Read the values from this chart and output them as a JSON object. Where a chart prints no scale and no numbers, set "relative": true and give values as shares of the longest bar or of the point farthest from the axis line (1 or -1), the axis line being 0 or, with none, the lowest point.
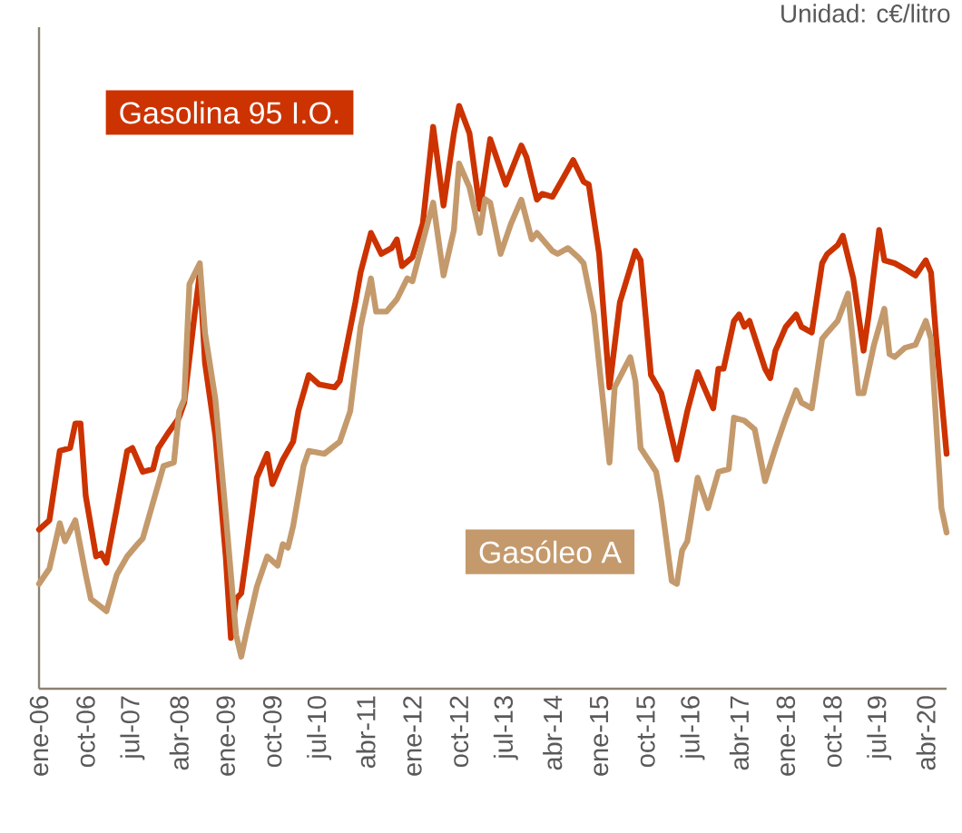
{
  "chart_data": {
    "type": "line",
    "relative": true,
    "annotations": [
      "Unidad: c€/litro"
    ],
    "xlim": [
      "2006-01",
      "2020-08"
    ],
    "xticks": [
      {
        "value": "2006-01",
        "label": "ene-06"
      },
      {
        "value": "2006-10",
        "label": "oct-06"
      },
      {
        "value": "2007-07",
        "label": "jul-07"
      },
      {
        "value": "2008-04",
        "label": "abr-08"
      },
      {
        "value": "2009-01",
        "label": "ene-09"
      },
      {
        "value": "2009-10",
        "label": "oct-09"
      },
      {
        "value": "2010-07",
        "label": "jul-10"
      },
      {
        "value": "2011-04",
        "label": "abr-11"
      },
      {
        "value": "2012-01",
        "label": "ene-12"
      },
      {
        "value": "2012-10",
        "label": "oct-12"
      },
      {
        "value": "2013-07",
        "label": "jul-13"
      },
      {
        "value": "2014-04",
        "label": "abr-14"
      },
      {
        "value": "2015-01",
        "label": "ene-15"
      },
      {
        "value": "2015-10",
        "label": "oct-15"
      },
      {
        "value": "2016-07",
        "label": "jul-16"
      },
      {
        "value": "2017-04",
        "label": "abr-17"
      },
      {
        "value": "2018-01",
        "label": "ene-18"
      },
      {
        "value": "2018-10",
        "label": "oct-18"
      },
      {
        "value": "2019-07",
        "label": "jul-19"
      },
      {
        "value": "2020-04",
        "label": "abr-20"
      }
    ],
    "series": [
      {
        "name": "Gasolina 95 I.O.",
        "color": "#cc3300",
        "x": [
          "2006-01",
          "2006-03",
          "2006-05",
          "2006-07",
          "2006-08",
          "2006-09",
          "2006-10",
          "2006-12",
          "2007-01",
          "2007-02",
          "2007-04",
          "2007-06",
          "2007-07",
          "2007-09",
          "2007-11",
          "2007-12",
          "2008-02",
          "2008-04",
          "2008-05",
          "2008-07",
          "2008-08",
          "2008-09",
          "2008-11",
          "2009-01",
          "2009-02",
          "2009-03",
          "2009-04",
          "2009-05",
          "2009-07",
          "2009-09",
          "2009-10",
          "2009-12",
          "2010-02",
          "2010-03",
          "2010-05",
          "2010-07",
          "2010-10",
          "2010-11",
          "2011-02",
          "2011-03",
          "2011-05",
          "2011-07",
          "2011-09",
          "2011-10",
          "2011-11",
          "2012-01",
          "2012-03",
          "2012-05",
          "2012-07",
          "2012-09",
          "2012-10",
          "2012-12",
          "2013-02",
          "2013-04",
          "2013-07",
          "2013-10",
          "2013-11",
          "2014-01",
          "2014-02",
          "2014-04",
          "2014-06",
          "2014-08",
          "2014-10",
          "2014-11",
          "2015-01",
          "2015-03",
          "2015-05",
          "2015-08",
          "2015-09",
          "2015-11",
          "2016-01",
          "2016-04",
          "2016-06",
          "2016-08",
          "2016-11",
          "2016-12",
          "2017-01",
          "2017-03",
          "2017-04",
          "2017-05",
          "2017-06",
          "2017-09",
          "2017-10",
          "2017-11",
          "2018-01",
          "2018-03",
          "2018-04",
          "2018-06",
          "2018-08",
          "2018-09",
          "2018-11",
          "2018-12",
          "2019-02",
          "2019-04",
          "2019-05",
          "2019-07",
          "2019-08",
          "2019-10",
          "2019-12",
          "2020-02",
          "2020-04",
          "2020-05",
          "2020-06",
          "2020-08"
        ],
        "values": [
          0.273,
          0.289,
          0.408,
          0.413,
          0.455,
          0.455,
          0.331,
          0.227,
          0.232,
          0.216,
          0.31,
          0.408,
          0.413,
          0.372,
          0.377,
          0.413,
          0.44,
          0.465,
          0.491,
          0.642,
          0.714,
          0.559,
          0.434,
          0.227,
          0.087,
          0.154,
          0.164,
          0.227,
          0.362,
          0.403,
          0.351,
          0.393,
          0.424,
          0.476,
          0.538,
          0.522,
          0.517,
          0.528,
          0.663,
          0.714,
          0.782,
          0.746,
          0.756,
          0.771,
          0.725,
          0.74,
          0.798,
          0.964,
          0.829,
          0.953,
          1.0,
          0.953,
          0.823,
          0.943,
          0.865,
          0.932,
          0.912,
          0.839,
          0.849,
          0.844,
          0.875,
          0.907,
          0.87,
          0.865,
          0.746,
          0.517,
          0.663,
          0.751,
          0.735,
          0.538,
          0.507,
          0.393,
          0.476,
          0.543,
          0.481,
          0.549,
          0.549,
          0.631,
          0.642,
          0.621,
          0.631,
          0.549,
          0.533,
          0.58,
          0.621,
          0.642,
          0.621,
          0.611,
          0.73,
          0.746,
          0.761,
          0.777,
          0.704,
          0.58,
          0.642,
          0.787,
          0.735,
          0.73,
          0.72,
          0.709,
          0.735,
          0.714,
          0.6,
          0.403
        ]
      },
      {
        "name": "Gasóleo A",
        "color": "#c49a6c",
        "x": [
          "2006-01",
          "2006-03",
          "2006-05",
          "2006-06",
          "2006-08",
          "2006-10",
          "2006-11",
          "2007-02",
          "2007-04",
          "2007-06",
          "2007-08",
          "2007-09",
          "2007-11",
          "2008-01",
          "2008-03",
          "2008-04",
          "2008-05",
          "2008-06",
          "2008-08",
          "2008-09",
          "2008-11",
          "2009-01",
          "2009-03",
          "2009-04",
          "2009-05",
          "2009-07",
          "2009-09",
          "2009-11",
          "2009-12",
          "2010-01",
          "2010-02",
          "2010-04",
          "2010-05",
          "2010-08",
          "2010-11",
          "2011-01",
          "2011-03",
          "2011-05",
          "2011-06",
          "2011-08",
          "2011-10",
          "2011-12",
          "2012-01",
          "2012-03",
          "2012-05",
          "2012-07",
          "2012-09",
          "2012-10",
          "2012-12",
          "2013-02",
          "2013-03",
          "2013-04",
          "2013-06",
          "2013-08",
          "2013-10",
          "2013-12",
          "2014-01",
          "2014-04",
          "2014-05",
          "2014-07",
          "2014-09",
          "2014-10",
          "2014-12",
          "2015-03",
          "2015-04",
          "2015-07",
          "2015-08",
          "2015-09",
          "2015-12",
          "2016-01",
          "2016-03",
          "2016-04",
          "2016-05",
          "2016-06",
          "2016-08",
          "2016-10",
          "2016-12",
          "2017-02",
          "2017-03",
          "2017-05",
          "2017-07",
          "2017-09",
          "2017-11",
          "2018-01",
          "2018-03",
          "2018-04",
          "2018-06",
          "2018-08",
          "2018-09",
          "2018-11",
          "2019-01",
          "2019-03",
          "2019-04",
          "2019-06",
          "2019-08",
          "2019-09",
          "2019-10",
          "2019-12",
          "2020-02",
          "2020-04",
          "2020-05",
          "2020-07",
          "2020-08"
        ],
        "values": [
          0.18,
          0.206,
          0.284,
          0.253,
          0.289,
          0.196,
          0.154,
          0.133,
          0.196,
          0.227,
          0.248,
          0.258,
          0.32,
          0.382,
          0.388,
          0.476,
          0.497,
          0.694,
          0.73,
          0.611,
          0.497,
          0.3,
          0.092,
          0.055,
          0.097,
          0.175,
          0.227,
          0.211,
          0.248,
          0.242,
          0.279,
          0.382,
          0.408,
          0.403,
          0.424,
          0.476,
          0.621,
          0.704,
          0.647,
          0.647,
          0.668,
          0.704,
          0.699,
          0.767,
          0.834,
          0.709,
          0.787,
          0.901,
          0.86,
          0.782,
          0.84,
          0.834,
          0.746,
          0.798,
          0.839,
          0.771,
          0.782,
          0.751,
          0.746,
          0.756,
          0.74,
          0.73,
          0.642,
          0.388,
          0.517,
          0.569,
          0.528,
          0.413,
          0.372,
          0.32,
          0.185,
          0.18,
          0.237,
          0.253,
          0.362,
          0.31,
          0.372,
          0.377,
          0.465,
          0.46,
          0.445,
          0.356,
          0.413,
          0.465,
          0.512,
          0.491,
          0.481,
          0.6,
          0.611,
          0.631,
          0.678,
          0.507,
          0.507,
          0.59,
          0.652,
          0.574,
          0.569,
          0.585,
          0.59,
          0.631,
          0.6,
          0.31,
          0.268
        ]
      }
    ]
  }
}
